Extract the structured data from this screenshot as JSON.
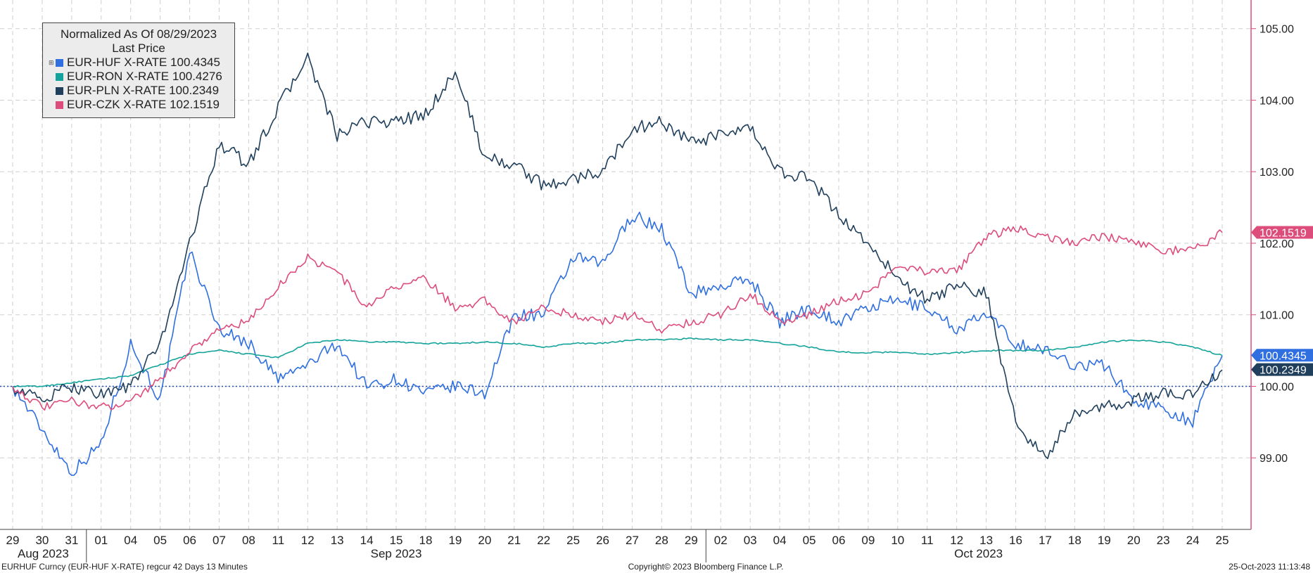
{
  "legend": {
    "title": "Normalized As Of 08/29/2023",
    "subtitle": "Last Price",
    "expander": "⊞",
    "entries": [
      {
        "label": "EUR-HUF X-RATE",
        "value": "100.4345",
        "color": "#2f6fe0"
      },
      {
        "label": "EUR-RON X-RATE",
        "value": "100.4276",
        "color": "#14a39a"
      },
      {
        "label": "EUR-PLN X-RATE",
        "value": "100.2349",
        "color": "#1f3f5c"
      },
      {
        "label": "EUR-CZK X-RATE",
        "value": "102.1519",
        "color": "#dd4d7c"
      }
    ]
  },
  "footer": {
    "left": "EURHUF Curncy (EUR-HUF X-RATE) regcur 42 Days 13 Minutes",
    "center": "Copyright© 2023 Bloomberg Finance L.P.",
    "right": "25-Oct-2023 11:13:48"
  },
  "chart_data": {
    "type": "line",
    "y_axis": {
      "position": "right",
      "ticks": [
        "99.00",
        "100.00",
        "101.00",
        "102.00",
        "103.00",
        "104.00",
        "105.00"
      ],
      "ylim": [
        98.0,
        105.4
      ],
      "color": "#dd4d7c"
    },
    "x_axis": {
      "tick_labels": [
        "29",
        "30",
        "31",
        "01",
        "04",
        "05",
        "06",
        "07",
        "08",
        "11",
        "12",
        "13",
        "14",
        "15",
        "18",
        "19",
        "20",
        "21",
        "22",
        "25",
        "26",
        "27",
        "28",
        "29",
        "02",
        "03",
        "04",
        "05",
        "06",
        "09",
        "10",
        "11",
        "12",
        "13",
        "16",
        "17",
        "18",
        "19",
        "20",
        "23",
        "24",
        "25"
      ],
      "months": [
        {
          "label": "Aug 2023",
          "start_index": 0
        },
        {
          "label": "Sep 2023",
          "start_index": 3
        },
        {
          "label": "Oct 2023",
          "start_index": 24
        }
      ]
    },
    "grid": true,
    "baseline": {
      "value": 100.0,
      "style": "dotted",
      "color": "#1f4fb0"
    },
    "legend_placement": "top-left",
    "series": [
      {
        "name": "EUR-HUF X-RATE",
        "color": "#2f6fe0",
        "last": "100.4345",
        "values": [
          100.0,
          99.4,
          98.8,
          99.2,
          100.6,
          99.8,
          101.9,
          100.8,
          100.6,
          100.1,
          100.3,
          100.6,
          100.0,
          100.1,
          99.9,
          100.0,
          99.9,
          101.0,
          101.0,
          101.8,
          101.7,
          102.4,
          102.2,
          101.3,
          101.4,
          101.5,
          100.9,
          101.1,
          100.9,
          101.1,
          101.2,
          101.1,
          100.8,
          101.0,
          100.6,
          100.5,
          100.3,
          100.3,
          99.8,
          99.7,
          99.5,
          100.43
        ]
      },
      {
        "name": "EUR-RON X-RATE",
        "color": "#14a39a",
        "last": "100.4276",
        "values": [
          100.0,
          100.0,
          100.05,
          100.1,
          100.15,
          100.3,
          100.45,
          100.5,
          100.45,
          100.4,
          100.6,
          100.65,
          100.62,
          100.62,
          100.6,
          100.6,
          100.62,
          100.6,
          100.55,
          100.6,
          100.6,
          100.65,
          100.65,
          100.67,
          100.65,
          100.65,
          100.6,
          100.55,
          100.48,
          100.47,
          100.48,
          100.45,
          100.47,
          100.5,
          100.5,
          100.5,
          100.55,
          100.62,
          100.65,
          100.62,
          100.55,
          100.43
        ]
      },
      {
        "name": "EUR-PLN X-RATE",
        "color": "#1f3f5c",
        "last": "100.2349",
        "values": [
          100.0,
          99.8,
          100.0,
          99.9,
          100.0,
          100.6,
          102.0,
          103.4,
          103.1,
          103.9,
          104.6,
          103.5,
          103.7,
          103.7,
          103.8,
          104.4,
          103.2,
          103.1,
          102.8,
          102.9,
          103.0,
          103.6,
          103.7,
          103.4,
          103.5,
          103.6,
          103.0,
          102.9,
          102.4,
          102.0,
          101.5,
          101.2,
          101.4,
          101.3,
          99.5,
          99.0,
          99.6,
          99.7,
          99.8,
          99.9,
          99.9,
          100.23
        ]
      },
      {
        "name": "EUR-CZK X-RATE",
        "color": "#dd4d7c",
        "last": "102.1519",
        "values": [
          100.0,
          99.7,
          99.8,
          99.7,
          99.8,
          100.1,
          100.5,
          100.8,
          100.9,
          101.4,
          101.8,
          101.6,
          101.1,
          101.4,
          101.5,
          101.1,
          101.2,
          100.9,
          101.1,
          101.0,
          100.9,
          101.0,
          100.8,
          100.9,
          101.0,
          101.3,
          100.9,
          101.0,
          101.2,
          101.3,
          101.7,
          101.6,
          101.6,
          102.1,
          102.2,
          102.1,
          102.0,
          102.1,
          102.0,
          101.9,
          101.9,
          102.15
        ]
      }
    ]
  }
}
